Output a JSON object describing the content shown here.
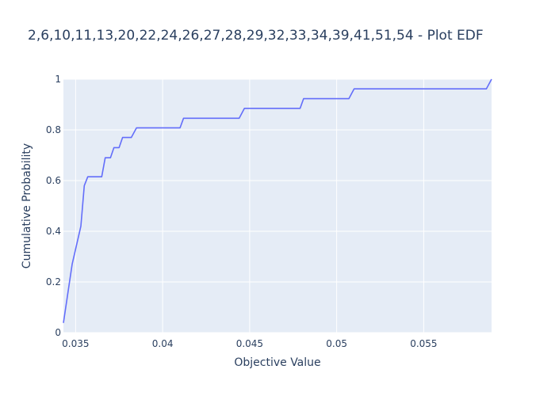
{
  "chart_data": {
    "type": "line",
    "title": "2,6,10,11,13,20,22,24,26,27,28,29,32,33,34,39,41,51,54 - Plot EDF",
    "xlabel": "Objective Value",
    "ylabel": "Cumulative Probability",
    "xlim": [
      0.0343,
      0.0589
    ],
    "ylim": [
      0,
      1
    ],
    "x_ticks": [
      0.035,
      0.04,
      0.045,
      0.05,
      0.055
    ],
    "x_tick_labels": [
      "0.035",
      "0.04",
      "0.045",
      "0.05",
      "0.055"
    ],
    "y_ticks": [
      0,
      0.2,
      0.4,
      0.6,
      0.8,
      1
    ],
    "y_tick_labels": [
      "0",
      "0.2",
      "0.4",
      "0.6",
      "0.8",
      "1"
    ],
    "grid": true,
    "colors": {
      "line": "#636efa",
      "plot_bg": "#e5ecf6",
      "grid": "#ffffff",
      "text": "#2a3f5f"
    },
    "series": [
      {
        "x": [
          0.0343,
          0.0348,
          0.0353,
          0.0355,
          0.0357,
          0.0365,
          0.0367,
          0.037,
          0.0372,
          0.0375,
          0.0377,
          0.0382,
          0.0385,
          0.041,
          0.0412,
          0.0444,
          0.0447,
          0.0479,
          0.0481,
          0.0507,
          0.051,
          0.0586,
          0.0589
        ],
        "y": [
          0.038,
          0.27,
          0.42,
          0.58,
          0.615,
          0.615,
          0.69,
          0.69,
          0.73,
          0.73,
          0.77,
          0.77,
          0.808,
          0.808,
          0.846,
          0.846,
          0.885,
          0.885,
          0.923,
          0.923,
          0.962,
          0.962,
          1.0
        ]
      }
    ]
  }
}
